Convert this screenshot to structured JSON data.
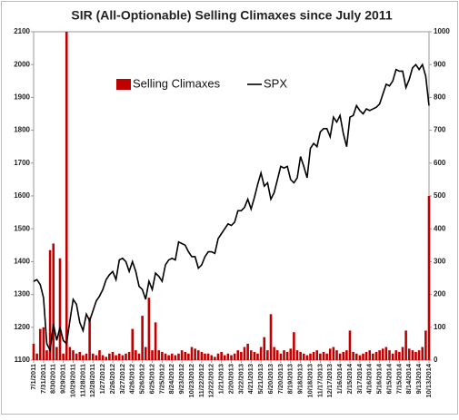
{
  "chart_data": {
    "type": "combo",
    "title": "SIR (All-Optionable) Selling Climaxes since July 2011",
    "categories": [
      "7/1/2011",
      null,
      null,
      "7/31/2011",
      null,
      null,
      "8/30/2011",
      null,
      null,
      "9/29/2011",
      null,
      null,
      "10/29/2011",
      null,
      null,
      "11/28/2011",
      null,
      null,
      "12/28/2011",
      null,
      null,
      "1/27/2012",
      null,
      null,
      "2/26/2012",
      null,
      null,
      "3/27/2012",
      null,
      null,
      "4/26/2012",
      null,
      null,
      "5/26/2012",
      null,
      null,
      "6/25/2012",
      null,
      null,
      "7/25/2012",
      null,
      null,
      "8/24/2012",
      null,
      null,
      "9/23/2012",
      null,
      null,
      "10/23/2012",
      null,
      null,
      "11/22/2012",
      null,
      null,
      "12/22/2012",
      null,
      null,
      "1/21/2013",
      null,
      null,
      "2/20/2013",
      null,
      null,
      "3/22/2013",
      null,
      null,
      "4/21/2013",
      null,
      null,
      "5/21/2013",
      null,
      null,
      "6/20/2013",
      null,
      null,
      "7/20/2013",
      null,
      null,
      "8/19/2013",
      null,
      null,
      "9/18/2013",
      null,
      null,
      "10/18/2013",
      null,
      null,
      "11/17/2013",
      null,
      null,
      "12/17/2013",
      null,
      null,
      "1/16/2014",
      null,
      null,
      "2/15/2014",
      null,
      null,
      "3/17/2014",
      null,
      null,
      "4/16/2014",
      null,
      null,
      "5/16/2014",
      null,
      null,
      "6/15/2014",
      null,
      null,
      "7/15/2014",
      null,
      null,
      "8/14/2014",
      null,
      null,
      "9/13/2014",
      null,
      null,
      "10/13/2014"
    ],
    "series": [
      {
        "name": "Selling Climaxes",
        "type": "bar",
        "axis": "y2",
        "color": "#c00000",
        "values": [
          50,
          20,
          95,
          100,
          30,
          335,
          355,
          40,
          310,
          20,
          1000,
          40,
          30,
          20,
          25,
          15,
          20,
          130,
          20,
          15,
          30,
          15,
          10,
          20,
          25,
          15,
          20,
          15,
          20,
          25,
          95,
          30,
          20,
          135,
          40,
          190,
          30,
          115,
          30,
          25,
          20,
          15,
          20,
          15,
          20,
          30,
          25,
          20,
          40,
          35,
          30,
          25,
          20,
          20,
          15,
          10,
          20,
          25,
          15,
          20,
          15,
          20,
          30,
          25,
          40,
          50,
          30,
          25,
          20,
          40,
          70,
          30,
          140,
          40,
          30,
          20,
          30,
          25,
          35,
          85,
          30,
          25,
          20,
          15,
          20,
          25,
          30,
          20,
          25,
          20,
          35,
          40,
          30,
          20,
          25,
          30,
          90,
          25,
          20,
          15,
          20,
          25,
          30,
          20,
          25,
          30,
          35,
          40,
          30,
          20,
          30,
          25,
          40,
          90,
          35,
          30,
          25,
          30,
          40,
          90,
          500
        ]
      },
      {
        "name": "SPX",
        "type": "line",
        "color": "#000000",
        "values": [
          1340,
          1345,
          1330,
          1290,
          1150,
          1130,
          1210,
          1160,
          1200,
          1160,
          1150,
          1220,
          1285,
          1270,
          1215,
          1190,
          1240,
          1220,
          1250,
          1280,
          1295,
          1315,
          1345,
          1360,
          1370,
          1345,
          1405,
          1410,
          1400,
          1370,
          1400,
          1370,
          1325,
          1315,
          1285,
          1340,
          1315,
          1365,
          1355,
          1340,
          1390,
          1405,
          1410,
          1405,
          1460,
          1455,
          1450,
          1430,
          1415,
          1415,
          1380,
          1390,
          1415,
          1430,
          1430,
          1425,
          1470,
          1485,
          1500,
          1515,
          1510,
          1520,
          1555,
          1555,
          1565,
          1590,
          1560,
          1595,
          1635,
          1670,
          1630,
          1640,
          1590,
          1610,
          1650,
          1690,
          1685,
          1690,
          1650,
          1640,
          1655,
          1720,
          1690,
          1655,
          1745,
          1760,
          1750,
          1795,
          1805,
          1805,
          1780,
          1840,
          1825,
          1845,
          1790,
          1750,
          1840,
          1845,
          1875,
          1860,
          1850,
          1865,
          1860,
          1865,
          1870,
          1880,
          1910,
          1940,
          1935,
          1950,
          1985,
          1980,
          1980,
          1930,
          1955,
          1990,
          2000,
          1985,
          2000,
          1965,
          1875
        ]
      }
    ],
    "ylim": [
      1100,
      2100
    ],
    "yticks": [
      1100,
      1200,
      1300,
      1400,
      1500,
      1600,
      1700,
      1800,
      1900,
      2000,
      2100
    ],
    "y2lim": [
      0,
      1000
    ],
    "y2ticks": [
      0,
      100,
      200,
      300,
      400,
      500,
      600,
      700,
      800,
      900,
      1000
    ],
    "grid": false
  }
}
